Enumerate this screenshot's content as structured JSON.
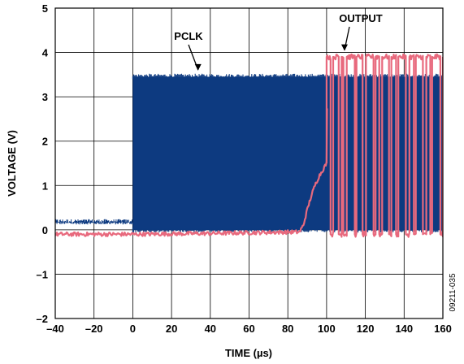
{
  "chart_data": {
    "type": "line",
    "title": "",
    "xlabel": "TIME (µs)",
    "ylabel": "VOLTAGE (V)",
    "xlim": [
      -40,
      160
    ],
    "ylim": [
      -2,
      5
    ],
    "x_ticks": [
      -40,
      -20,
      0,
      20,
      40,
      60,
      80,
      100,
      120,
      140,
      160
    ],
    "y_ticks": [
      -2,
      -1,
      0,
      1,
      2,
      3,
      4,
      5
    ],
    "x_tick_labels": [
      "–40",
      "–20",
      "0",
      "20",
      "40",
      "60",
      "80",
      "100",
      "120",
      "140",
      "160"
    ],
    "y_tick_labels": [
      "–2",
      "–1",
      "0",
      "1",
      "2",
      "3",
      "4",
      "5"
    ],
    "grid": true,
    "legend": "none",
    "figure_id": "09211-035",
    "series": [
      {
        "name": "PCLK",
        "color": "#0d3a80",
        "description_points": {
          "x": [
            -40,
            -0.1,
            0,
            160
          ],
          "low": [
            0.15,
            0.15,
            0.0,
            0.0
          ],
          "high": [
            0.2,
            0.2,
            3.45,
            3.45
          ]
        }
      },
      {
        "name": "OUTPUT",
        "color": "#e8697d",
        "x": [
          -40,
          0,
          40,
          80,
          86,
          88,
          90,
          92,
          94,
          96,
          98,
          100,
          100.5,
          160
        ],
        "y": [
          -0.1,
          -0.1,
          -0.08,
          -0.05,
          -0.05,
          0.1,
          0.45,
          0.75,
          1.0,
          1.2,
          1.35,
          1.5,
          3.9,
          3.9
        ],
        "toggle_start_x": 100,
        "toggle_low": -0.1,
        "toggle_high": 3.9
      }
    ],
    "annotations": [
      {
        "text": "PCLK",
        "target_x": 32,
        "target_y": 3.5
      },
      {
        "text": "OUTPUT",
        "target_x": 108,
        "target_y": 4.0
      }
    ]
  }
}
